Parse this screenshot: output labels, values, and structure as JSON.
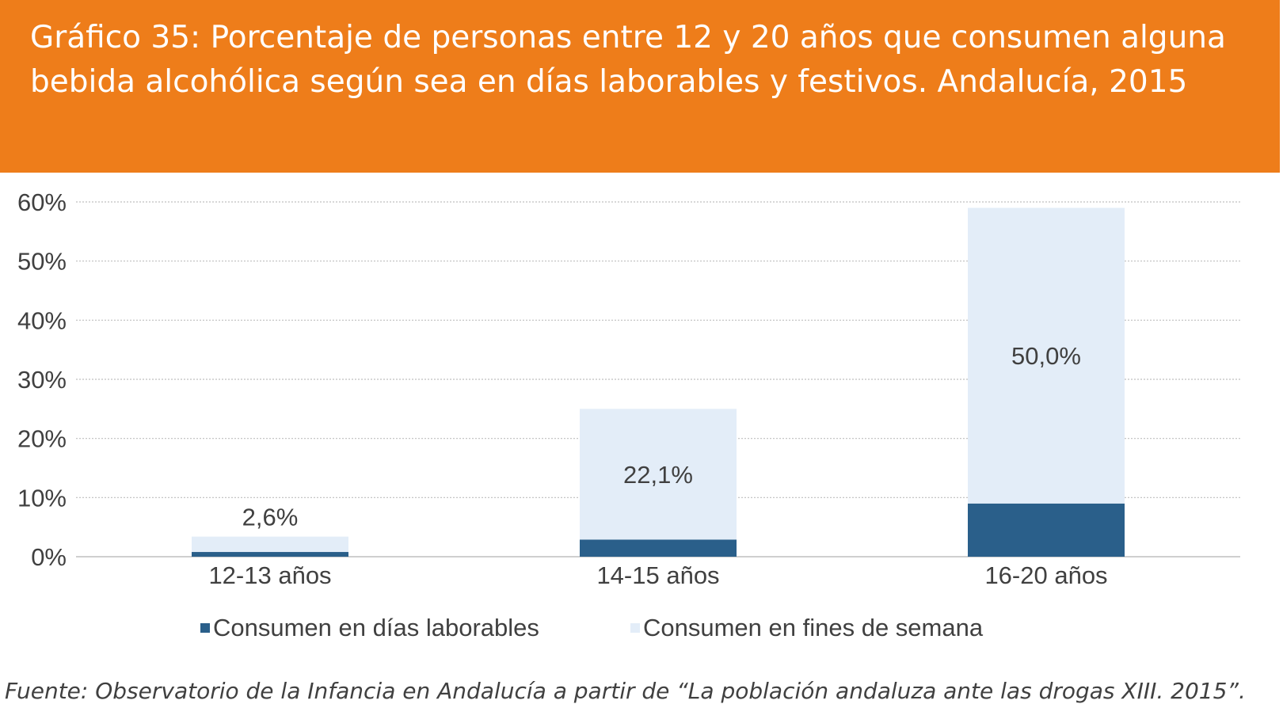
{
  "title": "Gráfico 35: Porcentaje de personas entre 12 y 20 años que consumen alguna bebida alcohólica según sea en días laborables y festivos. Andalucía, 2015",
  "source": "Fuente:  Observatorio de la Infancia en Andalucía a partir de “La población andaluza ante las drogas XIII. 2015”.",
  "colors": {
    "header": "#EE7D1A",
    "laborables": "#2A5F8A",
    "fines_semana": "#E3EDF8",
    "grid": "#BFBFBF",
    "text": "#404040"
  },
  "chart_data": {
    "type": "bar",
    "stacked": true,
    "categories": [
      "12-13 años",
      "14-15 años",
      "16-20 años"
    ],
    "series": [
      {
        "name": "Consumen en días laborables",
        "values": [
          0.8,
          2.9,
          9.0
        ],
        "color": "#2A5F8A"
      },
      {
        "name": "Consumen en fines de semana",
        "values": [
          2.6,
          22.1,
          50.0
        ],
        "color": "#E3EDF8",
        "labels": [
          "2,6%",
          "22,1%",
          "50,0%"
        ]
      }
    ],
    "ylim": [
      0,
      60
    ],
    "yticks": [
      "0%",
      "10%",
      "20%",
      "30%",
      "40%",
      "50%",
      "60%"
    ],
    "grid": true,
    "legend_position": "bottom"
  }
}
